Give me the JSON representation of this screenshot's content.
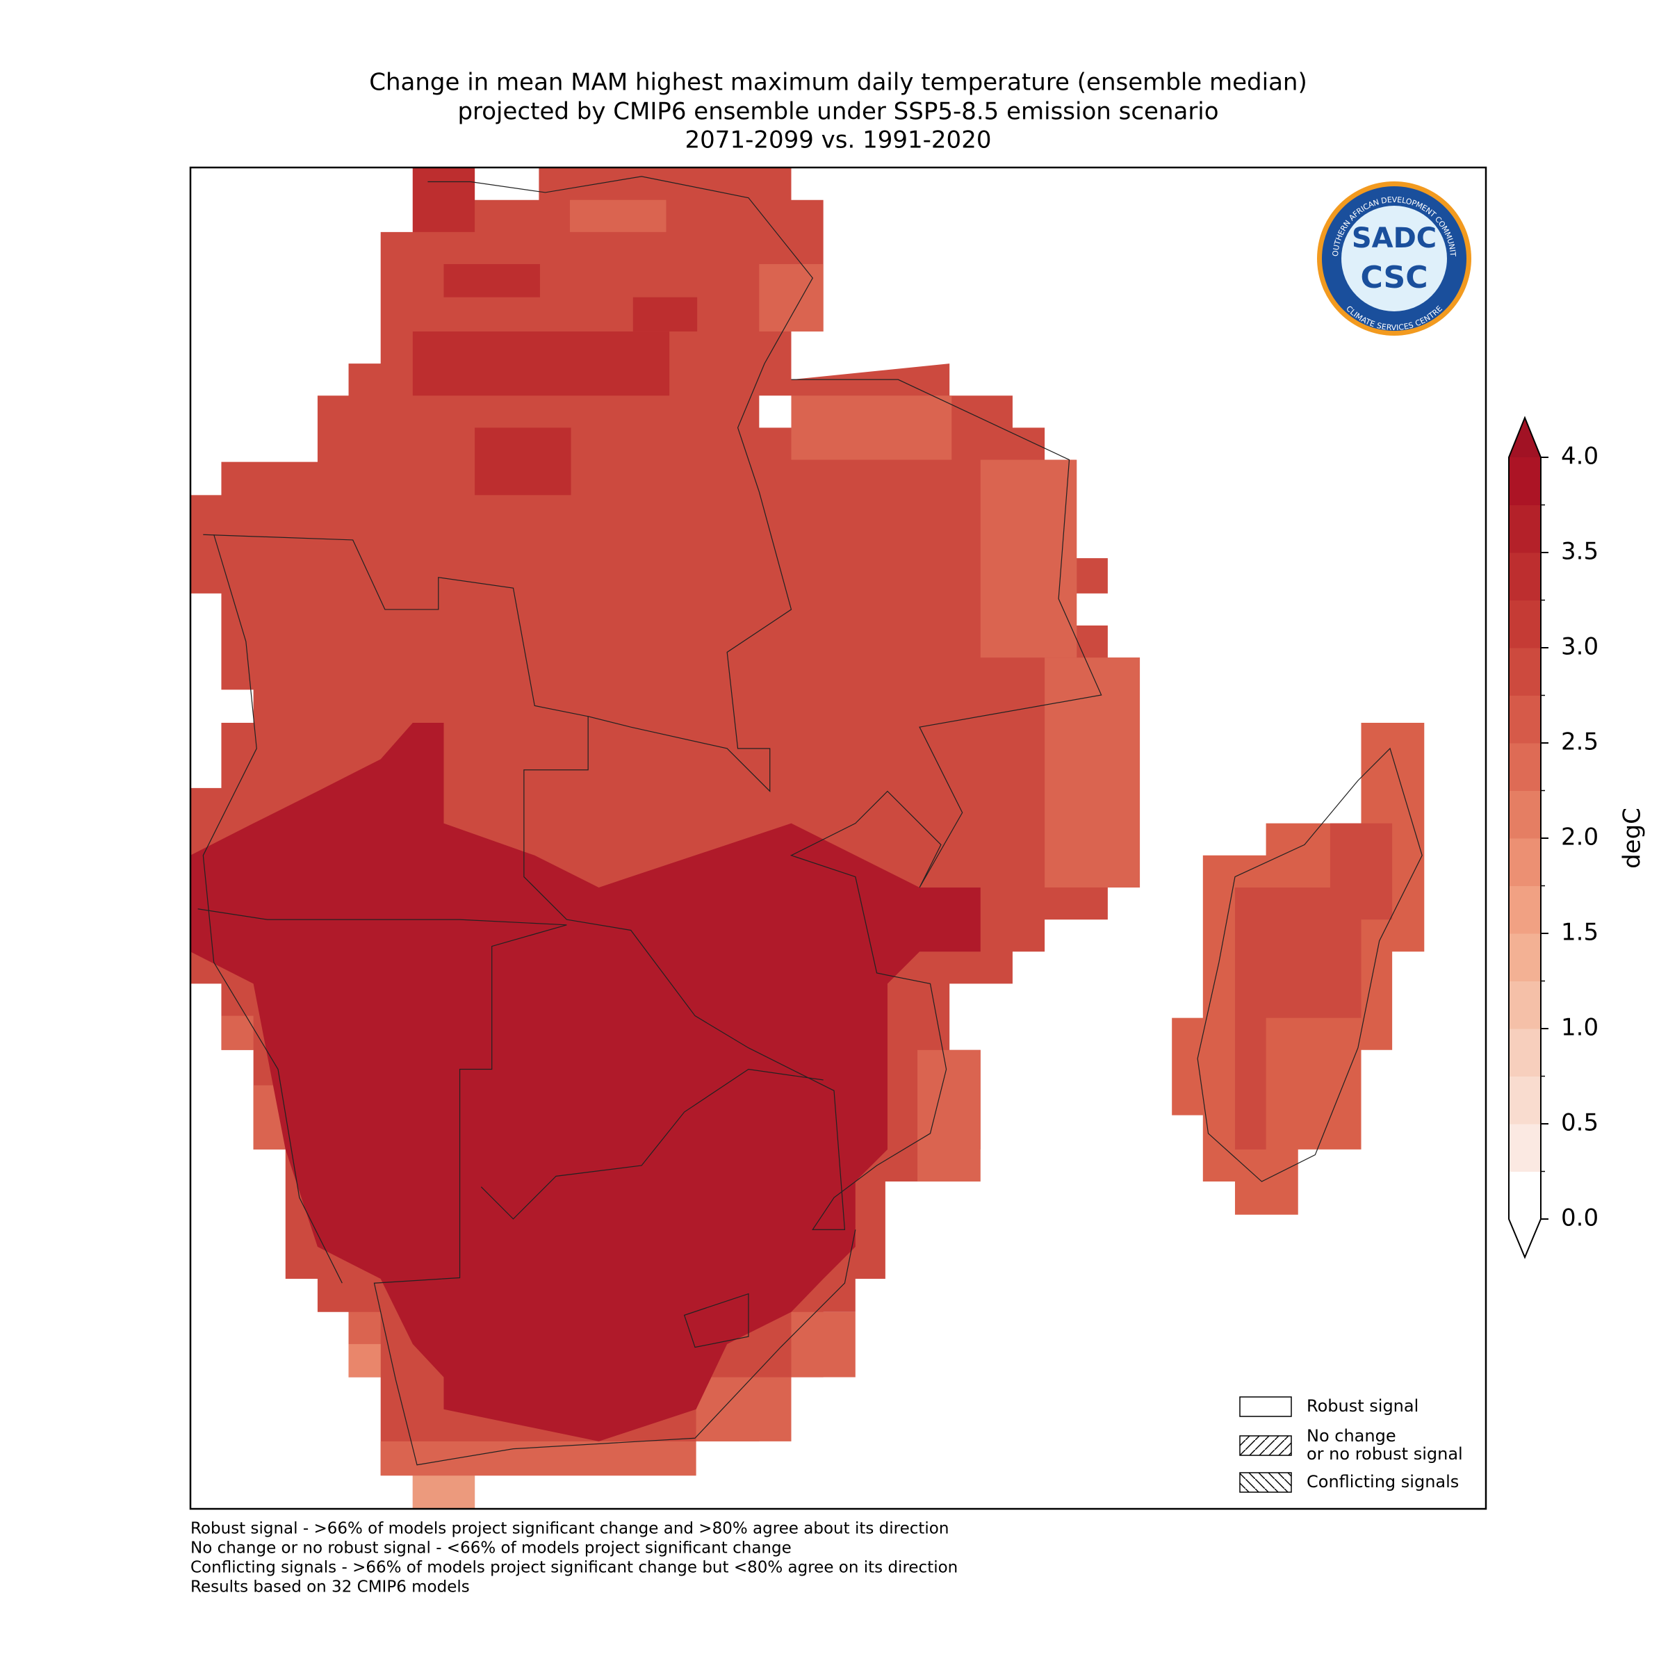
{
  "title": [
    "Change in mean MAM highest maximum daily temperature (ensemble median)",
    "projected by CMIP6 ensemble under SSP5-8.5 emission scenario",
    "2071-2099 vs. 1991-2020"
  ],
  "colorbar": {
    "label": "degC",
    "lim": [
      0,
      4
    ],
    "ticks": [
      {
        "value": 0,
        "label": "0.0"
      },
      {
        "value": 0.5,
        "label": "0.5"
      },
      {
        "value": 1,
        "label": "1.0"
      },
      {
        "value": 1.5,
        "label": "1.5"
      },
      {
        "value": 2,
        "label": "2.0"
      },
      {
        "value": 2.5,
        "label": "2.5"
      },
      {
        "value": 3,
        "label": "3.0"
      },
      {
        "value": 3.5,
        "label": "3.5"
      },
      {
        "value": 4,
        "label": "4.0"
      }
    ],
    "colors": [
      "#ffffff",
      "#fbe9e2",
      "#f9dccf",
      "#f7cfbd",
      "#f5c0a8",
      "#f3b194",
      "#f1a183",
      "#ec9073",
      "#e57e63",
      "#de6b55",
      "#d65a49",
      "#cd4a3e",
      "#c53b35",
      "#bd2e2f",
      "#b42129",
      "#ac1425"
    ],
    "under_color": "#ffffff",
    "over_color": "#a11224"
  },
  "legend": [
    {
      "label": [
        "Robust signal"
      ],
      "hatch": "none"
    },
    {
      "label": [
        "No change",
        "or no robust signal"
      ],
      "hatch": "/"
    },
    {
      "label": [
        "Conflicting signals"
      ],
      "hatch": "\\"
    }
  ],
  "notes": [
    "Robust signal - >66% of models project significant change and >80% agree about its direction",
    "No change or no robust signal - <66% of models project significant change",
    "Conflicting signals - >66% of models project significant change but <80% agree on its direction",
    "Results based on 32 CMIP6 models"
  ],
  "logo": {
    "ring_top": "SOUTHERN AFRICAN DEVELOPMENT COMMUNITY",
    "ring_bottom": "CLIMATE SERVICES CENTRE",
    "mark": "SADC",
    "name": "CSC"
  }
}
